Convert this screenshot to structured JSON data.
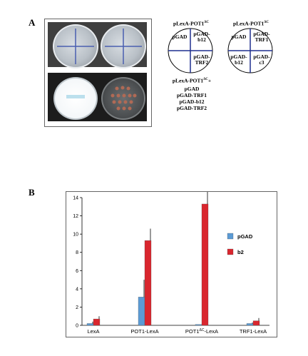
{
  "panel_a": {
    "letter": "A",
    "plate_title_1": {
      "prefix": "pLexA-POT1",
      "superscript": "ΔC"
    },
    "plate_title_2": {
      "prefix": "pLexA-POT1",
      "superscript": "ΔC"
    },
    "plate1_sectors": [
      "pGAD",
      "pGAD-\nb12",
      "pGAD-\nTRF2"
    ],
    "plate2_sectors": [
      "pGAD",
      "pGAD-\nTRF1",
      "pGAD-\nb12",
      "pGAD-\nc3"
    ],
    "list_title": {
      "prefix": "pLexA-POT1",
      "superscript": "ΔC",
      "suffix": "+"
    },
    "list_items": [
      "pGAD",
      "pGAD-TRF1",
      "pGAD-b12",
      "pGAD-TRF2"
    ]
  },
  "panel_b": {
    "letter": "B"
  },
  "chart_data": {
    "type": "bar",
    "categories": [
      "LexA",
      "POT1-LexA",
      "POT1ΔC-LexA",
      "TRF1-LexA"
    ],
    "category_labels": [
      {
        "prefix": "LexA",
        "superscript": "",
        "suffix": ""
      },
      {
        "prefix": "POT1-LexA",
        "superscript": "",
        "suffix": ""
      },
      {
        "prefix": "POT1",
        "superscript": "ΔC",
        "suffix": "-LexA"
      },
      {
        "prefix": "TRF1-LexA",
        "superscript": "",
        "suffix": ""
      }
    ],
    "series": [
      {
        "name": "pGAD",
        "color": "#5b9bd5",
        "values": [
          0.2,
          3.1,
          0.1,
          0.2
        ],
        "errors": [
          0.2,
          1.9,
          0.0,
          0.1
        ]
      },
      {
        "name": "b2",
        "color": "#d9262e",
        "values": [
          0.7,
          9.3,
          13.3,
          0.5
        ],
        "errors": [
          0.3,
          1.3,
          1.5,
          0.3
        ]
      }
    ],
    "ylim": [
      0,
      14
    ],
    "yticks": [
      0,
      2,
      4,
      6,
      8,
      10,
      12,
      14
    ],
    "legend": "right",
    "grid": false,
    "title": "",
    "xlabel": "",
    "ylabel": ""
  }
}
